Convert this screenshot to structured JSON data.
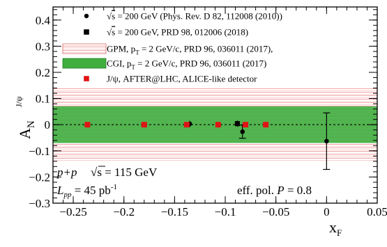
{
  "chart_data": {
    "type": "scatter",
    "xlabel": "x",
    "xlabel_sub": "F",
    "ylabel": "A",
    "ylabel_sub": "N",
    "ylabel_sup": "J/ψ",
    "xlim": [
      -0.27,
      0.05
    ],
    "ylim": [
      -0.3,
      0.45
    ],
    "xticks": [
      -0.25,
      -0.2,
      -0.15,
      -0.1,
      -0.05,
      0,
      0.05
    ],
    "xtick_labels": [
      "−0.25",
      "−0.2",
      "−0.15",
      "−0.1",
      "−0.05",
      "0",
      "0.05"
    ],
    "yticks": [
      -0.3,
      -0.2,
      -0.1,
      0,
      0.1,
      0.2,
      0.3,
      0.4
    ],
    "ytick_labels": [
      "−0.3",
      "−0.2",
      "−0.1",
      "0",
      "0.1",
      "0.2",
      "0.3",
      "0.4"
    ],
    "legend_position": "top",
    "zero_line": "dashed",
    "bands": [
      {
        "legend": "GPM, p_T = 2 GeV/c, PRD 96, 036011 (2017),",
        "label_parts": [
          "GPM, p",
          "T",
          " = 2 GeV/c, PRD 96, 036011 (2017),"
        ],
        "range": [
          -0.14,
          0.14
        ],
        "color": "#f19a9a",
        "pattern": "hatched"
      },
      {
        "legend": "CGI, p_T = 2 GeV/c, PRD 96, 036011 (2017)",
        "label_parts": [
          "CGI, p",
          "T",
          " = 2 GeV/c, PRD 96, 036011 (2017)"
        ],
        "range": [
          -0.07,
          0.07
        ],
        "color": "#3fae3f",
        "pattern": "solid"
      }
    ],
    "series": [
      {
        "legend": "√s = 200 GeV (Phys. Rev. D 82, 112008 (2010))",
        "label_parts": [
          "√",
          "s",
          " = 200 GeV (Phys. Rev. D 82, 112008 (2010))"
        ],
        "marker": "circle",
        "color": "#000000",
        "points": [
          {
            "x": -0.135,
            "y": 0.003,
            "err": 0.012
          },
          {
            "x": -0.083,
            "y": -0.027,
            "err": 0.025
          },
          {
            "x": 0.0,
            "y": -0.063,
            "err": 0.108
          }
        ]
      },
      {
        "legend": "√s = 200 GeV, PRD 98, 012006 (2018)",
        "label_parts": [
          "√",
          "s",
          " = 200 GeV, PRD 98, 012006 (2018)"
        ],
        "marker": "square",
        "color": "#000000",
        "points": [
          {
            "x": -0.088,
            "y": 0.004,
            "err": 0.012
          }
        ]
      },
      {
        "legend": "J/ψ, AFTER@LHC, ALICE-like detector",
        "label_parts": [
          "J/ψ, AFTER@LHC, ALICE-like detector"
        ],
        "marker": "square",
        "color": "#e01414",
        "points": [
          {
            "x": -0.236,
            "y": 0.0,
            "err": 0.003
          },
          {
            "x": -0.18,
            "y": 0.0,
            "err": 0.003
          },
          {
            "x": -0.138,
            "y": 0.0,
            "err": 0.004
          },
          {
            "x": -0.107,
            "y": 0.0,
            "err": 0.004
          },
          {
            "x": -0.08,
            "y": 0.0,
            "err": 0.004
          },
          {
            "x": -0.06,
            "y": 0.0,
            "err": 0.004
          }
        ]
      }
    ],
    "annotations": {
      "process": "p+p",
      "sqrt_s_label": "√s = 115 GeV",
      "lumi_symbol": "L",
      "lumi_sub": "pp",
      "lumi_value": " = 45 pb",
      "lumi_sup": "-1",
      "polarization_label": "eff. pol. ",
      "polarization_symbol": "P",
      "polarization_value": " = 0.8"
    }
  }
}
